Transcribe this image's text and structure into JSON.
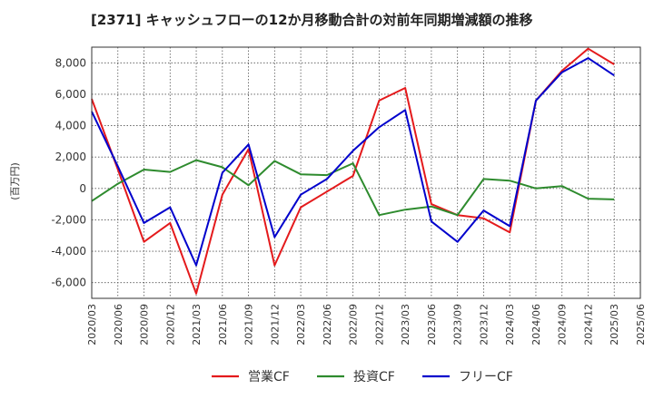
{
  "chart_data": {
    "type": "line",
    "title": "[2371]  キャッシュフローの12か月移動合計の対前年同期増減額の推移",
    "ylabel": "(百万円)",
    "xlabel": "",
    "ylim": [
      -7000,
      9000
    ],
    "yticks": [
      -6000,
      -4000,
      -2000,
      0,
      2000,
      4000,
      6000,
      8000
    ],
    "ytick_labels": [
      "-6,000",
      "-4,000",
      "-2,000",
      "0",
      "2,000",
      "4,000",
      "6,000",
      "8,000"
    ],
    "x": [
      "2020/03",
      "2020/06",
      "2020/09",
      "2020/12",
      "2021/03",
      "2021/06",
      "2021/09",
      "2021/12",
      "2022/03",
      "2022/06",
      "2022/09",
      "2022/12",
      "2023/03",
      "2023/06",
      "2023/09",
      "2023/12",
      "2024/03",
      "2024/06",
      "2024/09",
      "2024/12",
      "2025/03",
      "2025/06"
    ],
    "grid": true,
    "legend_position": "bottom",
    "series": [
      {
        "name": "営業CF",
        "color": "#e41a1c",
        "values": [
          5700,
          1200,
          -3400,
          -2200,
          -6700,
          -400,
          2500,
          -4900,
          -1200,
          -200,
          800,
          5600,
          6400,
          -1000,
          -1700,
          -1900,
          -2800,
          5600,
          7500,
          8900,
          7900,
          null
        ]
      },
      {
        "name": "投資CF",
        "color": "#2e8b2e",
        "values": [
          -800,
          300,
          1200,
          1050,
          1800,
          1350,
          200,
          1750,
          900,
          850,
          1600,
          -1700,
          -1350,
          -1150,
          -1700,
          600,
          500,
          0,
          150,
          -650,
          -700,
          null
        ]
      },
      {
        "name": "フリーCF",
        "color": "#0000cc",
        "values": [
          4900,
          1400,
          -2200,
          -1200,
          -4900,
          1000,
          2800,
          -3100,
          -400,
          600,
          2400,
          3900,
          5000,
          -2100,
          -3400,
          -1400,
          -2400,
          5600,
          7400,
          8300,
          7200,
          null
        ]
      }
    ]
  }
}
